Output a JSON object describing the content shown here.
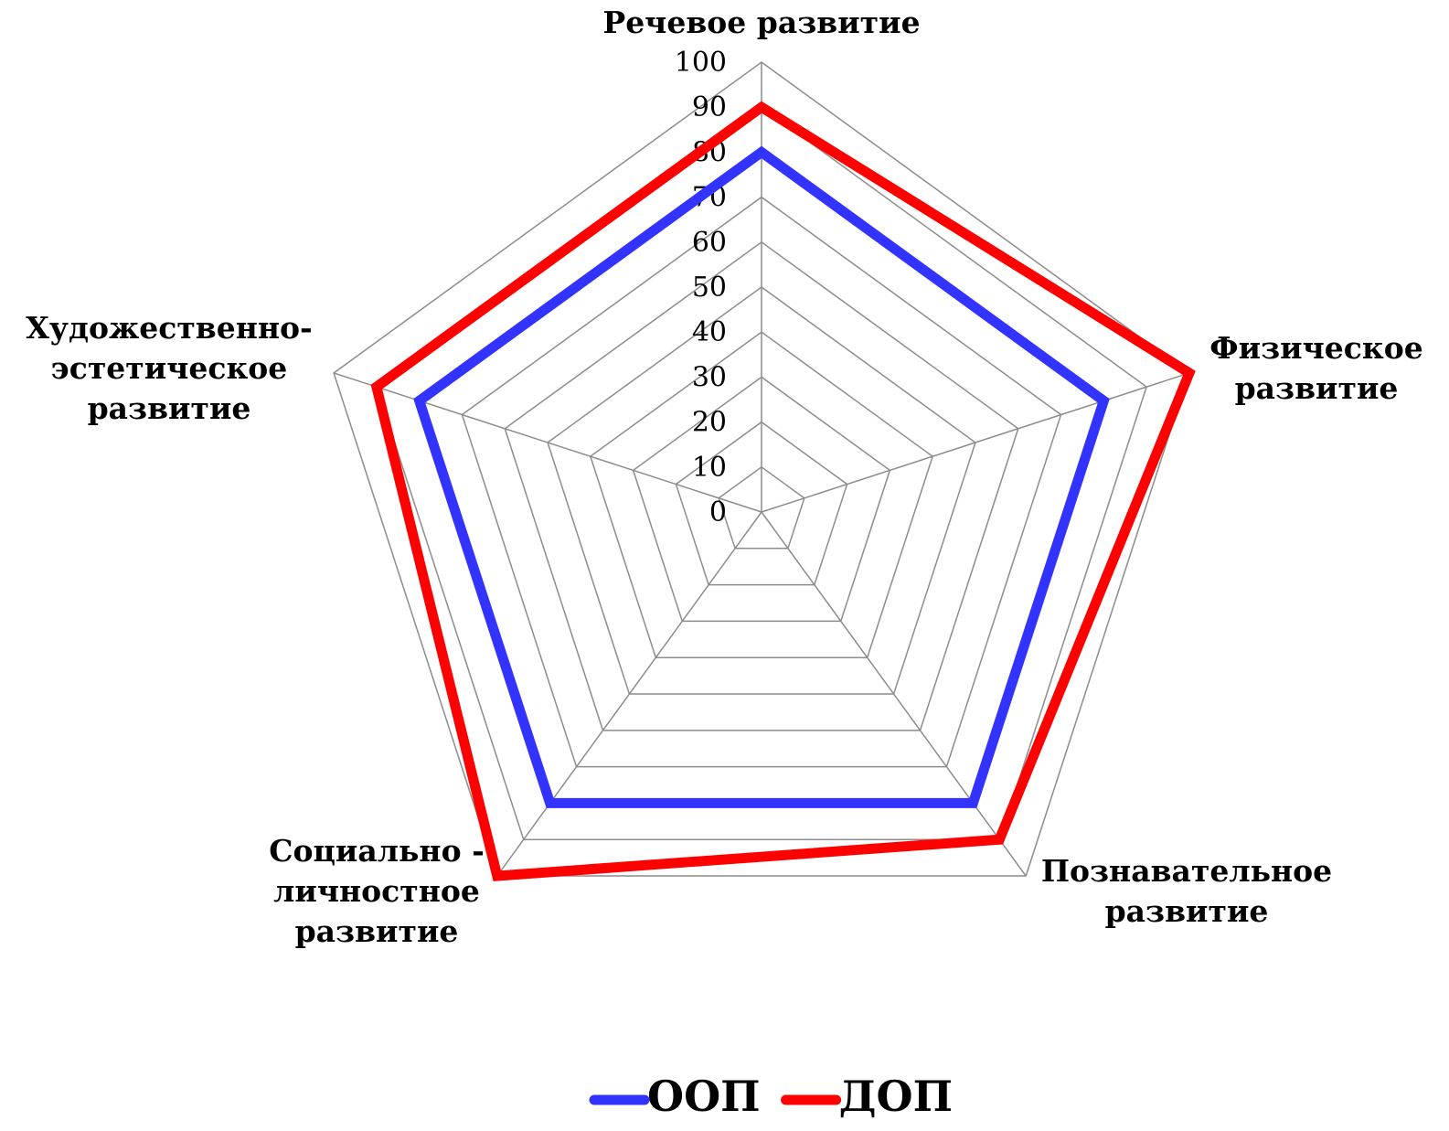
{
  "chart_data": {
    "type": "radar",
    "categories": [
      "Речевое развитие",
      "Физическое развитие",
      "Познавательное развитие",
      "Социально - личностное развитие",
      "Художественно-эстетическое развитие"
    ],
    "series": [
      {
        "name": "ООП",
        "color": "#3333ff",
        "values": [
          80,
          80,
          80,
          80,
          80
        ]
      },
      {
        "name": "ДОП",
        "color": "#ff0000",
        "values": [
          90,
          100,
          90,
          100,
          90
        ]
      }
    ],
    "ylim": [
      0,
      100
    ],
    "yticks": [
      0,
      10,
      20,
      30,
      40,
      50,
      60,
      70,
      80,
      90,
      100
    ],
    "grid": true,
    "legend": "bottom"
  }
}
